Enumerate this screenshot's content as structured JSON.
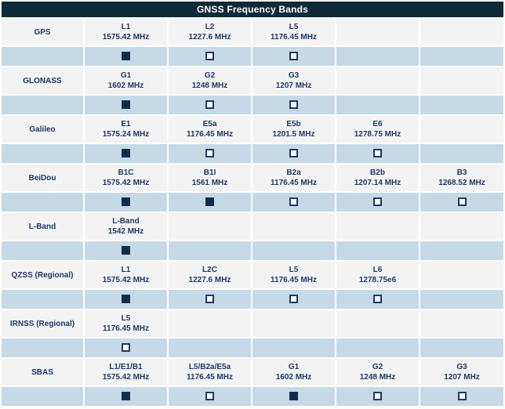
{
  "title": "GNSS Frequency Bands",
  "colors": {
    "header_bg": "#0e2a38",
    "header_text": "#ffffff",
    "band_row_bg": "#f3f3f4",
    "checkbox_row_bg": "#c6d9e7",
    "text": "#1f3864",
    "checkbox_filled": "#0f2b49",
    "checkbox_border": "#1f3864"
  },
  "table": {
    "data_columns": 5,
    "systems": [
      {
        "name": "GPS",
        "bands": [
          {
            "band": "L1",
            "freq": "1575.42 MHz",
            "checked": true
          },
          {
            "band": "L2",
            "freq": "1227.6 MHz",
            "checked": false
          },
          {
            "band": "L5",
            "freq": "1176.45 MHz",
            "checked": false
          }
        ]
      },
      {
        "name": "GLONASS",
        "bands": [
          {
            "band": "G1",
            "freq": "1602 MHz",
            "checked": true
          },
          {
            "band": "G2",
            "freq": "1248 MHz",
            "checked": false
          },
          {
            "band": "G3",
            "freq": "1207 MHz",
            "checked": false
          }
        ]
      },
      {
        "name": "Galileo",
        "bands": [
          {
            "band": "E1",
            "freq": "1575.24 MHz",
            "checked": true
          },
          {
            "band": "E5a",
            "freq": "1176.45 MHz",
            "checked": false
          },
          {
            "band": "E5b",
            "freq": "1201.5 MHz",
            "checked": false
          },
          {
            "band": "E6",
            "freq": "1278.75 MHz",
            "checked": false
          }
        ]
      },
      {
        "name": "BeiDou",
        "bands": [
          {
            "band": "B1C",
            "freq": "1575.42 MHz",
            "checked": true
          },
          {
            "band": "B1I",
            "freq": "1561 MHz",
            "checked": true
          },
          {
            "band": "B2a",
            "freq": "1176.45 MHz",
            "checked": false
          },
          {
            "band": "B2b",
            "freq": "1207.14 MHz",
            "checked": false
          },
          {
            "band": "B3",
            "freq": "1268.52 MHz",
            "checked": false
          }
        ]
      },
      {
        "name": "L-Band",
        "bands": [
          {
            "band": "L-Band",
            "freq": "1542 MHz",
            "checked": true
          }
        ]
      },
      {
        "name": "QZSS (Regional)",
        "bands": [
          {
            "band": "L1",
            "freq": "1575.42 MHz",
            "checked": true
          },
          {
            "band": "L2C",
            "freq": "1227.6 MHz",
            "checked": false
          },
          {
            "band": "L5",
            "freq": "1176.45 MHz",
            "checked": false
          },
          {
            "band": "L6",
            "freq": "1278.75e6",
            "checked": false
          }
        ]
      },
      {
        "name": "IRNSS (Regional)",
        "bands": [
          {
            "band": "L5",
            "freq": "1176.45 MHz",
            "checked": false
          }
        ]
      },
      {
        "name": "SBAS",
        "bands": [
          {
            "band": "L1/E1/B1",
            "freq": "1575.42 MHz",
            "checked": true
          },
          {
            "band": "L5/B2a/E5a",
            "freq": "1176.45 MHz",
            "checked": false
          },
          {
            "band": "G1",
            "freq": "1602 MHz",
            "checked": true
          },
          {
            "band": "G2",
            "freq": "1248 MHz",
            "checked": false
          },
          {
            "band": "G3",
            "freq": "1207 MHz",
            "checked": false
          }
        ]
      }
    ]
  }
}
